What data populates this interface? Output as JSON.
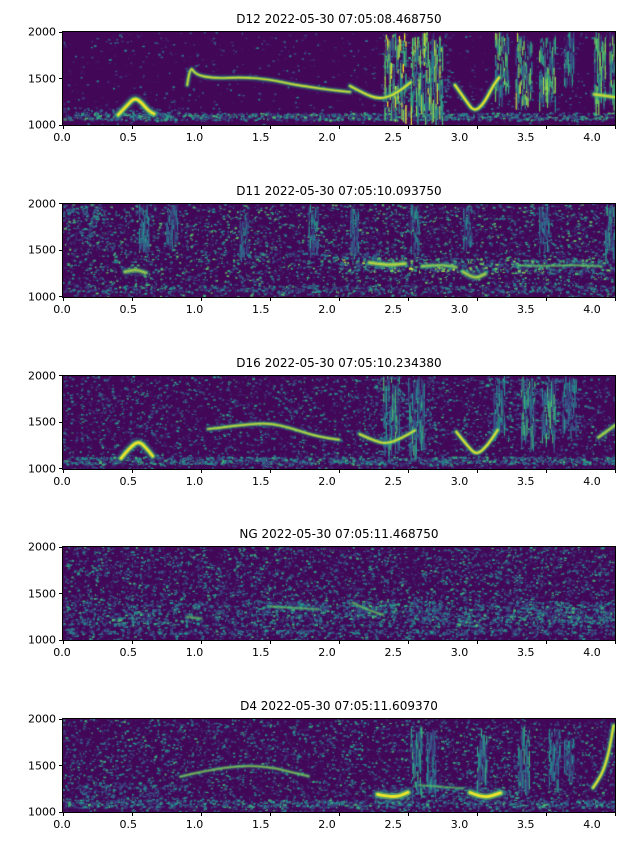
{
  "figure": {
    "background": "#ffffff",
    "colormap": "viridis",
    "viridis_stops": [
      "#440154",
      "#3b528b",
      "#21918c",
      "#5ec962",
      "#fde725"
    ]
  },
  "axis": {
    "x_ticks": [
      "0.0",
      "0.5",
      "1.0",
      "1.5",
      "2.0",
      "2.5",
      "3.0",
      "3.5",
      "4.0"
    ],
    "y_ticks": [
      "2000",
      "1500",
      "1000"
    ],
    "xlim": [
      0,
      4
    ],
    "ylim": [
      1000,
      2000
    ]
  },
  "chart_data": [
    {
      "type": "heatmap",
      "id": "D12",
      "title": "D12 2022-05-30 07:05:08.468750",
      "xlim": [
        0,
        4
      ],
      "ylim": [
        1000,
        2000
      ],
      "colormap": "viridis",
      "seed": 11,
      "noise": [
        0.018,
        0.45
      ],
      "patches": [
        [
          0,
          4,
          1055,
          1135,
          0.8,
          0.6
        ],
        [
          0,
          0.9,
          1135,
          1200,
          0.25,
          0.4
        ],
        [
          2.3,
          2.8,
          1135,
          2000,
          0.15,
          0.5
        ]
      ],
      "vbands": [
        [
          2.33,
          2.49,
          1150,
          2000,
          0.95
        ],
        [
          2.52,
          2.75,
          1150,
          2000,
          0.85
        ],
        [
          3.13,
          3.23,
          1350,
          2000,
          0.8
        ],
        [
          3.28,
          3.4,
          1300,
          2000,
          0.85
        ],
        [
          3.45,
          3.57,
          1300,
          2000,
          0.8
        ],
        [
          3.63,
          3.7,
          1500,
          2000,
          0.5
        ],
        [
          3.85,
          3.93,
          1250,
          2000,
          0.75
        ],
        [
          3.96,
          4.0,
          1250,
          2000,
          0.8
        ]
      ],
      "contours": [
        {
          "pts": [
            [
              0.4,
              1110
            ],
            [
              0.47,
              1220
            ],
            [
              0.52,
              1295
            ],
            [
              0.57,
              1240
            ],
            [
              0.62,
              1150
            ],
            [
              0.66,
              1120
            ]
          ],
          "w": 4,
          "i": 1
        },
        {
          "pts": [
            [
              0.9,
              1430
            ],
            [
              0.92,
              1640
            ],
            [
              0.96,
              1540
            ],
            [
              1.1,
              1500
            ],
            [
              1.3,
              1515
            ],
            [
              1.5,
              1490
            ],
            [
              1.65,
              1440
            ],
            [
              1.8,
              1405
            ],
            [
              1.95,
              1375
            ],
            [
              2.08,
              1355
            ]
          ],
          "w": 2.6,
          "i": 0.9
        },
        {
          "pts": [
            [
              2.08,
              1420
            ],
            [
              2.18,
              1340
            ],
            [
              2.28,
              1280
            ],
            [
              2.38,
              1310
            ],
            [
              2.47,
              1400
            ],
            [
              2.52,
              1460
            ]
          ],
          "w": 2.8,
          "i": 0.95
        },
        {
          "pts": [
            [
              2.84,
              1430
            ],
            [
              2.92,
              1260
            ],
            [
              2.98,
              1140
            ],
            [
              3.05,
              1230
            ],
            [
              3.12,
              1430
            ],
            [
              3.16,
              1510
            ]
          ],
          "w": 3,
          "i": 1
        },
        {
          "pts": [
            [
              3.85,
              1330
            ],
            [
              4.0,
              1300
            ]
          ],
          "w": 3.5,
          "i": 0.9
        }
      ]
    },
    {
      "type": "heatmap",
      "id": "D11",
      "title": "D11 2022-05-30 07:05:10.093750",
      "xlim": [
        0,
        4
      ],
      "ylim": [
        1000,
        2000
      ],
      "colormap": "viridis",
      "seed": 22,
      "noise": [
        0.11,
        0.7
      ],
      "patches": [
        [
          0,
          4,
          1060,
          1130,
          0.35,
          0.45
        ],
        [
          2.0,
          3.05,
          1280,
          1430,
          0.45,
          0.8
        ],
        [
          3.05,
          4.0,
          1260,
          1420,
          0.4,
          0.7
        ],
        [
          1.2,
          2.3,
          1430,
          1480,
          0.3,
          0.5
        ],
        [
          0.0,
          0.3,
          1600,
          2000,
          0.2,
          0.5
        ]
      ],
      "vbands": [
        [
          0.55,
          0.62,
          1550,
          2000,
          0.45
        ],
        [
          0.75,
          0.83,
          1600,
          2000,
          0.4
        ],
        [
          1.28,
          1.34,
          1500,
          1950,
          0.4
        ],
        [
          1.78,
          1.85,
          1550,
          2000,
          0.45
        ],
        [
          2.08,
          2.14,
          1500,
          2000,
          0.4
        ],
        [
          2.52,
          2.58,
          1550,
          2000,
          0.45
        ],
        [
          2.9,
          2.96,
          1600,
          2000,
          0.4
        ],
        [
          3.45,
          3.52,
          1550,
          2000,
          0.45
        ],
        [
          3.93,
          4.0,
          1500,
          2000,
          0.5
        ]
      ],
      "contours": [
        {
          "pts": [
            [
              0.45,
              1270
            ],
            [
              0.52,
              1300
            ],
            [
              0.6,
              1260
            ]
          ],
          "w": 3.5,
          "i": 0.75
        },
        {
          "pts": [
            [
              2.22,
              1370
            ],
            [
              2.35,
              1340
            ],
            [
              2.48,
              1360
            ]
          ],
          "w": 3.5,
          "i": 0.85
        },
        {
          "pts": [
            [
              2.6,
              1330
            ],
            [
              2.75,
              1350
            ],
            [
              2.85,
              1320
            ]
          ],
          "w": 3,
          "i": 0.7
        },
        {
          "pts": [
            [
              2.9,
              1270
            ],
            [
              2.98,
              1190
            ],
            [
              3.06,
              1250
            ]
          ],
          "w": 3.5,
          "i": 0.8
        },
        {
          "pts": [
            [
              3.3,
              1340
            ],
            [
              3.5,
              1330
            ],
            [
              3.7,
              1345
            ],
            [
              3.9,
              1330
            ]
          ],
          "w": 2,
          "i": 0.55
        }
      ]
    },
    {
      "type": "heatmap",
      "id": "D16",
      "title": "D16 2022-05-30 07:05:10.234380",
      "xlim": [
        0,
        4
      ],
      "ylim": [
        1000,
        2000
      ],
      "colormap": "viridis",
      "seed": 33,
      "noise": [
        0.08,
        0.55
      ],
      "patches": [
        [
          0,
          4,
          1055,
          1135,
          0.7,
          0.55
        ],
        [
          2.25,
          2.7,
          1200,
          2000,
          0.12,
          0.45
        ],
        [
          3.05,
          3.75,
          1400,
          2000,
          0.12,
          0.45
        ]
      ],
      "vbands": [
        [
          2.32,
          2.44,
          1250,
          2000,
          0.6
        ],
        [
          2.5,
          2.62,
          1250,
          2000,
          0.55
        ],
        [
          3.12,
          3.2,
          1400,
          2000,
          0.5
        ],
        [
          3.32,
          3.42,
          1350,
          2000,
          0.6
        ],
        [
          3.47,
          3.57,
          1350,
          2000,
          0.6
        ],
        [
          3.62,
          3.72,
          1450,
          2000,
          0.45
        ]
      ],
      "contours": [
        {
          "pts": [
            [
              0.42,
              1115
            ],
            [
              0.49,
              1240
            ],
            [
              0.55,
              1300
            ],
            [
              0.6,
              1230
            ],
            [
              0.65,
              1140
            ]
          ],
          "w": 4,
          "i": 1
        },
        {
          "pts": [
            [
              1.05,
              1430
            ],
            [
              1.25,
              1465
            ],
            [
              1.45,
              1495
            ],
            [
              1.58,
              1470
            ],
            [
              1.72,
              1405
            ],
            [
              1.86,
              1345
            ],
            [
              2.0,
              1315
            ]
          ],
          "w": 2.6,
          "i": 0.85
        },
        {
          "pts": [
            [
              2.15,
              1375
            ],
            [
              2.25,
              1305
            ],
            [
              2.35,
              1270
            ],
            [
              2.45,
              1330
            ],
            [
              2.55,
              1415
            ]
          ],
          "w": 2.8,
          "i": 0.9
        },
        {
          "pts": [
            [
              2.85,
              1400
            ],
            [
              2.94,
              1230
            ],
            [
              3.0,
              1150
            ],
            [
              3.08,
              1260
            ],
            [
              3.15,
              1420
            ]
          ],
          "w": 3,
          "i": 0.95
        },
        {
          "pts": [
            [
              3.88,
              1340
            ],
            [
              4.0,
              1470
            ]
          ],
          "w": 3,
          "i": 0.8
        }
      ]
    },
    {
      "type": "heatmap",
      "id": "NG",
      "title": "NG 2022-05-30 07:05:11.468750",
      "xlim": [
        0,
        4
      ],
      "ylim": [
        1000,
        2000
      ],
      "colormap": "viridis",
      "seed": 44,
      "noise": [
        0.13,
        0.6
      ],
      "patches": [
        [
          0,
          4,
          1150,
          1420,
          0.2,
          0.5
        ],
        [
          0.35,
          0.62,
          1150,
          1300,
          0.45,
          0.6
        ],
        [
          1.45,
          1.9,
          1300,
          1420,
          0.35,
          0.55
        ],
        [
          2.05,
          2.4,
          1250,
          1430,
          0.45,
          0.6
        ],
        [
          2.5,
          2.8,
          1200,
          1350,
          0.35,
          0.55
        ],
        [
          2.85,
          3.05,
          1150,
          1280,
          0.45,
          0.6
        ],
        [
          3.1,
          4.0,
          1200,
          1380,
          0.4,
          0.55
        ],
        [
          0,
          4,
          1065,
          1120,
          0.35,
          0.4
        ]
      ],
      "vbands": [],
      "contours": [
        {
          "pts": [
            [
              2.1,
              1400
            ],
            [
              2.2,
              1330
            ],
            [
              2.32,
              1270
            ]
          ],
          "w": 2.2,
          "i": 0.55
        },
        {
          "pts": [
            [
              1.5,
              1360
            ],
            [
              1.68,
              1345
            ],
            [
              1.85,
              1330
            ]
          ],
          "w": 2,
          "i": 0.5
        },
        {
          "pts": [
            [
              0.9,
              1250
            ],
            [
              1.0,
              1230
            ]
          ],
          "w": 2.5,
          "i": 0.5
        }
      ]
    },
    {
      "type": "heatmap",
      "id": "D4",
      "title": "D4 2022-05-30 07:05:11.609370",
      "xlim": [
        0,
        4
      ],
      "ylim": [
        1000,
        2000
      ],
      "colormap": "viridis",
      "seed": 55,
      "noise": [
        0.1,
        0.6
      ],
      "patches": [
        [
          0,
          4,
          1055,
          1135,
          0.6,
          0.55
        ],
        [
          0.1,
          0.9,
          1140,
          1320,
          0.25,
          0.45
        ],
        [
          2.2,
          3.3,
          1140,
          1300,
          0.2,
          0.5
        ]
      ],
      "vbands": [
        [
          2.52,
          2.6,
          1250,
          1950,
          0.55
        ],
        [
          2.63,
          2.7,
          1300,
          1900,
          0.45
        ],
        [
          3.0,
          3.07,
          1300,
          1900,
          0.5
        ],
        [
          3.3,
          3.38,
          1300,
          1950,
          0.55
        ],
        [
          3.52,
          3.6,
          1350,
          1900,
          0.45
        ],
        [
          3.63,
          3.7,
          1400,
          1800,
          0.4
        ]
      ],
      "contours": [
        {
          "pts": [
            [
              0.85,
              1380
            ],
            [
              1.05,
              1450
            ],
            [
              1.3,
              1500
            ],
            [
              1.5,
              1485
            ],
            [
              1.65,
              1430
            ],
            [
              1.78,
              1385
            ]
          ],
          "w": 2.2,
          "i": 0.65
        },
        {
          "pts": [
            [
              2.28,
              1190
            ],
            [
              2.4,
              1150
            ],
            [
              2.5,
              1210
            ]
          ],
          "w": 4.5,
          "i": 1
        },
        {
          "pts": [
            [
              2.95,
              1210
            ],
            [
              3.05,
              1145
            ],
            [
              3.17,
              1205
            ]
          ],
          "w": 4.5,
          "i": 1
        },
        {
          "pts": [
            [
              2.58,
              1290
            ],
            [
              2.75,
              1270
            ],
            [
              2.9,
              1255
            ]
          ],
          "w": 2,
          "i": 0.5
        },
        {
          "pts": [
            [
              3.84,
              1260
            ],
            [
              3.9,
              1380
            ],
            [
              3.95,
              1600
            ],
            [
              3.99,
              1930
            ]
          ],
          "w": 3,
          "i": 0.95
        }
      ]
    }
  ]
}
